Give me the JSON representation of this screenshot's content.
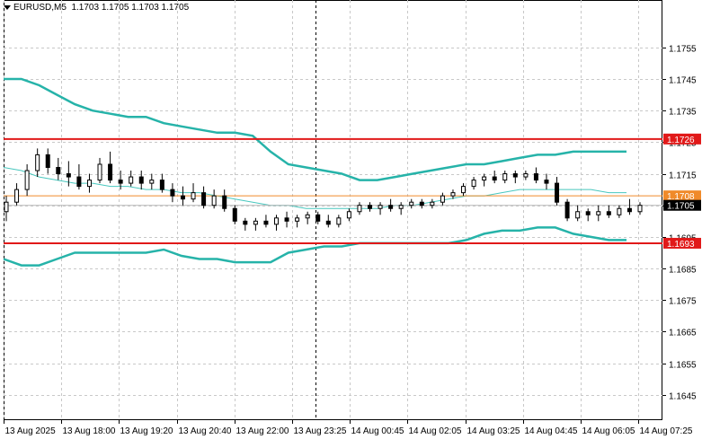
{
  "header": {
    "symbol": "EURUSD,M5",
    "ohlc": "1.1703 1.1705 1.1703 1.1705"
  },
  "colors": {
    "band": "#26b3a9",
    "ma": "#48c7be",
    "level": "#e11919",
    "orange_line": "#f08a2a",
    "grid": "#c8c8c8",
    "candle": "#000000",
    "current_bg": "#000000"
  },
  "chart_data": {
    "type": "candlestick",
    "ylim": [
      1.1637,
      1.177
    ],
    "y_ticks": [
      "1.1755",
      "1.1745",
      "1.1735",
      "1.1725",
      "1.1715",
      "1.1705",
      "1.1695",
      "1.1685",
      "1.1675",
      "1.1665",
      "1.1655",
      "1.1645"
    ],
    "x_ticks": [
      "13 Aug 2025",
      "13 Aug 18:00",
      "13 Aug 19:20",
      "13 Aug 20:40",
      "13 Aug 22:00",
      "13 Aug 23:25",
      "14 Aug 00:45",
      "14 Aug 02:05",
      "14 Aug 03:25",
      "14 Aug 04:45",
      "14 Aug 06:05",
      "14 Aug 07:25"
    ],
    "levels": [
      {
        "label": "1.1726",
        "value": 1.1726,
        "role": "resistance"
      },
      {
        "label": "1.1693",
        "value": 1.1693,
        "role": "support"
      }
    ],
    "orange_level": {
      "label": "1.1708",
      "value": 1.1708
    },
    "current_price": {
      "label": "1.1705",
      "value": 1.1705
    },
    "upper_band": [
      1.1745,
      1.1745,
      1.1743,
      1.174,
      1.1737,
      1.1735,
      1.1734,
      1.1733,
      1.1733,
      1.1731,
      1.173,
      1.1729,
      1.1728,
      1.1728,
      1.1727,
      1.1722,
      1.1718,
      1.1717,
      1.1716,
      1.1715,
      1.1713,
      1.1713,
      1.1714,
      1.1715,
      1.1716,
      1.1717,
      1.1718,
      1.1718,
      1.1719,
      1.172,
      1.1721,
      1.1721,
      1.1722,
      1.1722,
      1.1722,
      1.1722
    ],
    "lower_band": [
      1.1688,
      1.1686,
      1.1686,
      1.1688,
      1.169,
      1.169,
      1.169,
      1.169,
      1.169,
      1.1691,
      1.1689,
      1.1688,
      1.1688,
      1.1687,
      1.1687,
      1.1687,
      1.169,
      1.1691,
      1.1692,
      1.1692,
      1.1693,
      1.1693,
      1.1693,
      1.1693,
      1.1693,
      1.1693,
      1.1694,
      1.1696,
      1.1697,
      1.1697,
      1.1698,
      1.1698,
      1.1696,
      1.1695,
      1.1694,
      1.1694
    ],
    "middle_band": [
      1.1717,
      1.1716,
      1.1714,
      1.1713,
      1.1712,
      1.1712,
      1.1711,
      1.1711,
      1.171,
      1.171,
      1.1709,
      1.1709,
      1.1708,
      1.1707,
      1.1706,
      1.1705,
      1.1705,
      1.1704,
      1.1704,
      1.1704,
      1.1704,
      1.1704,
      1.1705,
      1.1705,
      1.1706,
      1.1707,
      1.1708,
      1.1708,
      1.1709,
      1.171,
      1.171,
      1.171,
      1.171,
      1.171,
      1.1709,
      1.1709
    ],
    "candles": [
      [
        1.1703,
        1.1708,
        1.17,
        1.1706
      ],
      [
        1.1706,
        1.1712,
        1.1705,
        1.171
      ],
      [
        1.171,
        1.1718,
        1.1708,
        1.1716
      ],
      [
        1.1716,
        1.1723,
        1.1714,
        1.1721
      ],
      [
        1.1721,
        1.1723,
        1.1715,
        1.1717
      ],
      [
        1.1717,
        1.172,
        1.1713,
        1.1715
      ],
      [
        1.1715,
        1.1719,
        1.1711,
        1.1714
      ],
      [
        1.1714,
        1.1718,
        1.171,
        1.1711
      ],
      [
        1.1711,
        1.1715,
        1.1709,
        1.1713
      ],
      [
        1.1713,
        1.172,
        1.1712,
        1.1718
      ],
      [
        1.1718,
        1.1722,
        1.1712,
        1.1713
      ],
      [
        1.1713,
        1.1716,
        1.171,
        1.1712
      ],
      [
        1.1712,
        1.1716,
        1.1711,
        1.1714
      ],
      [
        1.1714,
        1.1716,
        1.171,
        1.1712
      ],
      [
        1.1712,
        1.1715,
        1.171,
        1.1713
      ],
      [
        1.1713,
        1.1715,
        1.1709,
        1.171
      ],
      [
        1.171,
        1.1712,
        1.1706,
        1.1708
      ],
      [
        1.1708,
        1.1711,
        1.1705,
        1.1707
      ],
      [
        1.1707,
        1.1712,
        1.1706,
        1.1709
      ],
      [
        1.1709,
        1.1711,
        1.1704,
        1.1705
      ],
      [
        1.1705,
        1.171,
        1.1704,
        1.1708
      ],
      [
        1.1708,
        1.171,
        1.1703,
        1.1704
      ],
      [
        1.1704,
        1.1705,
        1.1699,
        1.17
      ],
      [
        1.17,
        1.1701,
        1.1697,
        1.1699
      ],
      [
        1.1699,
        1.1701,
        1.1697,
        1.17
      ],
      [
        1.17,
        1.1702,
        1.1698,
        1.1699
      ],
      [
        1.1699,
        1.1702,
        1.1697,
        1.1701
      ],
      [
        1.1701,
        1.1703,
        1.1698,
        1.17
      ],
      [
        1.17,
        1.1702,
        1.1698,
        1.1701
      ],
      [
        1.1701,
        1.1703,
        1.1699,
        1.1702
      ],
      [
        1.1702,
        1.1703,
        1.1699,
        1.17
      ],
      [
        1.17,
        1.1702,
        1.1698,
        1.1699
      ],
      [
        1.1699,
        1.1702,
        1.1698,
        1.1701
      ],
      [
        1.1701,
        1.1704,
        1.17,
        1.1703
      ],
      [
        1.1703,
        1.1706,
        1.1702,
        1.1705
      ],
      [
        1.1705,
        1.1706,
        1.1703,
        1.1704
      ],
      [
        1.1704,
        1.1706,
        1.1702,
        1.1705
      ],
      [
        1.1705,
        1.1707,
        1.1703,
        1.1704
      ],
      [
        1.1704,
        1.1706,
        1.1702,
        1.1705
      ],
      [
        1.1705,
        1.1707,
        1.1704,
        1.1706
      ],
      [
        1.1706,
        1.1707,
        1.1704,
        1.1705
      ],
      [
        1.1705,
        1.1707,
        1.1704,
        1.1706
      ],
      [
        1.1706,
        1.1709,
        1.1705,
        1.1708
      ],
      [
        1.1708,
        1.171,
        1.1707,
        1.1709
      ],
      [
        1.1709,
        1.1712,
        1.1708,
        1.1711
      ],
      [
        1.1711,
        1.1714,
        1.171,
        1.1713
      ],
      [
        1.1713,
        1.1715,
        1.1711,
        1.1714
      ],
      [
        1.1714,
        1.1716,
        1.1712,
        1.1713
      ],
      [
        1.1713,
        1.1716,
        1.1712,
        1.1715
      ],
      [
        1.1715,
        1.1716,
        1.1712,
        1.1714
      ],
      [
        1.1714,
        1.1716,
        1.1713,
        1.1715
      ],
      [
        1.1715,
        1.1717,
        1.1712,
        1.1713
      ],
      [
        1.1713,
        1.1715,
        1.171,
        1.1712
      ],
      [
        1.1712,
        1.1714,
        1.1705,
        1.1706
      ],
      [
        1.1706,
        1.1707,
        1.17,
        1.1701
      ],
      [
        1.1701,
        1.1705,
        1.17,
        1.1703
      ],
      [
        1.1703,
        1.1704,
        1.17,
        1.1702
      ],
      [
        1.1702,
        1.1705,
        1.17,
        1.1703
      ],
      [
        1.1703,
        1.1705,
        1.1701,
        1.1702
      ],
      [
        1.1702,
        1.1705,
        1.1701,
        1.1704
      ],
      [
        1.1704,
        1.1707,
        1.1702,
        1.1703
      ],
      [
        1.1703,
        1.1706,
        1.1702,
        1.1705
      ]
    ]
  }
}
